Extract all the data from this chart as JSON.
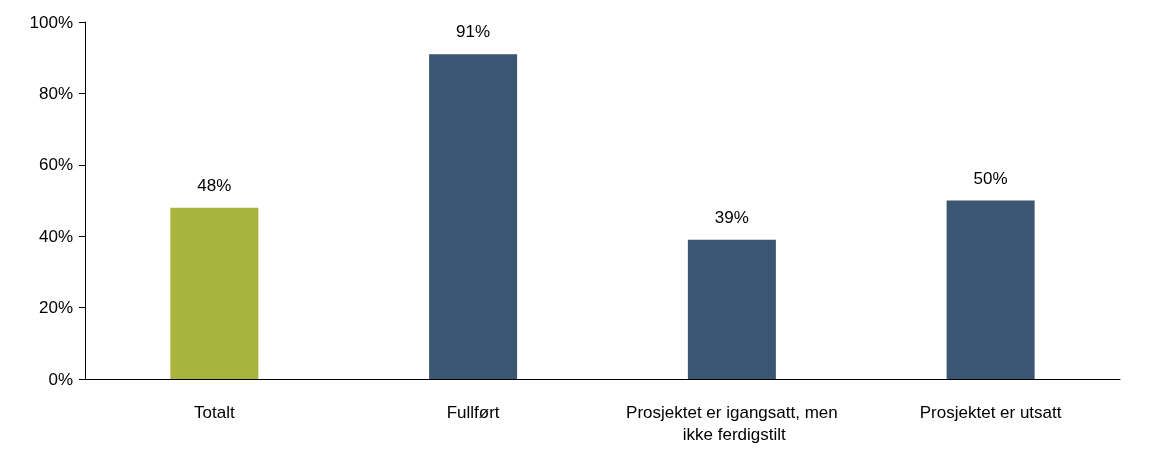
{
  "chart_data": {
    "type": "bar",
    "categories": [
      "Totalt",
      "Fullført",
      "Prosjektet er igangsatt, men ikke ferdigstilt",
      "Prosjektet er utsatt"
    ],
    "values": [
      48,
      91,
      39,
      50
    ],
    "colors": [
      "#a9b43f",
      "#3a5673",
      "#3a5673",
      "#3a5673"
    ],
    "value_labels": [
      "48%",
      "91%",
      "39%",
      "50%"
    ],
    "ylim": [
      0,
      100
    ],
    "yticks": [
      {
        "value": 0,
        "label": "0%"
      },
      {
        "value": 20,
        "label": "20%"
      },
      {
        "value": 40,
        "label": "40%"
      },
      {
        "value": 60,
        "label": "60%"
      },
      {
        "value": 80,
        "label": "80%"
      },
      {
        "value": 100,
        "label": "100%"
      }
    ],
    "grid": false
  }
}
